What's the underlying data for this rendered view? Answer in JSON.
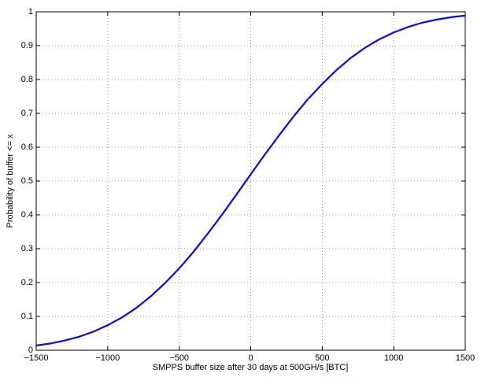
{
  "chart_data": {
    "type": "line",
    "xlabel": "SMPPS buffer size after 30 days at 500GH/s [BTC]",
    "ylabel": "Probability of buffer <= x",
    "x": [
      -1500,
      -1400,
      -1300,
      -1200,
      -1100,
      -1000,
      -900,
      -800,
      -700,
      -600,
      -500,
      -400,
      -300,
      -200,
      -100,
      0,
      100,
      200,
      300,
      400,
      500,
      600,
      700,
      800,
      900,
      1000,
      1100,
      1200,
      1300,
      1400,
      1500
    ],
    "series": [
      {
        "color": "#0a0ae6",
        "values": [
          0.014,
          0.02,
          0.029,
          0.04,
          0.055,
          0.074,
          0.097,
          0.125,
          0.159,
          0.198,
          0.242,
          0.291,
          0.345,
          0.401,
          0.46,
          0.52,
          0.579,
          0.636,
          0.691,
          0.742,
          0.787,
          0.828,
          0.864,
          0.894,
          0.919,
          0.939,
          0.955,
          0.968,
          0.977,
          0.984,
          0.989
        ]
      }
    ],
    "xlim": [
      -1500,
      1500
    ],
    "xticks": [
      {
        "value": -1500,
        "label": "−1500"
      },
      {
        "value": -1000,
        "label": "−1000"
      },
      {
        "value": -500,
        "label": "−500"
      },
      0,
      500,
      1000,
      1500
    ],
    "ylim": [
      0,
      1
    ],
    "yticks": [
      0,
      0.1,
      0.2,
      0.3,
      0.4,
      0.5,
      0.6,
      0.7,
      0.8,
      0.9,
      1
    ],
    "grid": true
  }
}
